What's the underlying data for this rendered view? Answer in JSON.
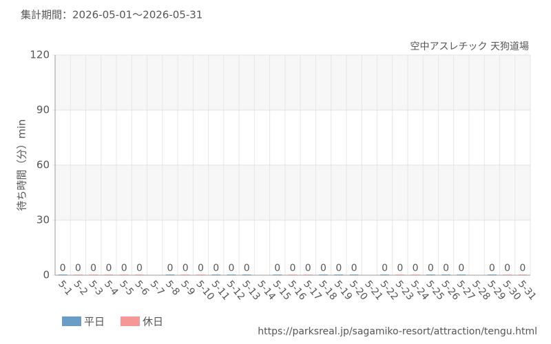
{
  "chart_data": {
    "type": "bar",
    "title": "集計期間：2026-05-01～2026-05-31",
    "subtitle": "空中アスレチック 天狗道場",
    "y_label": "待ち時間（分）min",
    "source": "https://parksreal.jp/sagamiko-resort/attraction/tengu.html",
    "categories": [
      "5-1",
      "5-2",
      "5-3",
      "5-4",
      "5-5",
      "5-6",
      "5-7",
      "5-8",
      "5-9",
      "5-10",
      "5-11",
      "5-12",
      "5-13",
      "5-14",
      "5-15",
      "5-16",
      "5-17",
      "5-18",
      "5-19",
      "5-20",
      "5-21",
      "5-22",
      "5-23",
      "5-24",
      "5-25",
      "5-26",
      "5-27",
      "5-28",
      "5-29",
      "5-30",
      "5-31"
    ],
    "series": [
      {
        "name": "平日",
        "color": "#6a9cc6",
        "values": [
          0,
          null,
          null,
          null,
          null,
          null,
          null,
          0,
          null,
          null,
          0,
          0,
          0,
          null,
          0,
          null,
          null,
          0,
          0,
          0,
          null,
          0,
          null,
          null,
          0,
          0,
          0,
          null,
          0,
          null,
          null
        ]
      },
      {
        "name": "休日",
        "color": "#f59797",
        "values": [
          null,
          0,
          0,
          0,
          0,
          0,
          null,
          null,
          0,
          0,
          null,
          null,
          null,
          null,
          null,
          0,
          0,
          null,
          null,
          null,
          null,
          null,
          0,
          0,
          null,
          null,
          null,
          null,
          null,
          0,
          0
        ]
      }
    ],
    "ylim": [
      0,
      120
    ],
    "yticks": [
      0,
      30,
      60,
      90,
      120
    ],
    "grid": true
  }
}
